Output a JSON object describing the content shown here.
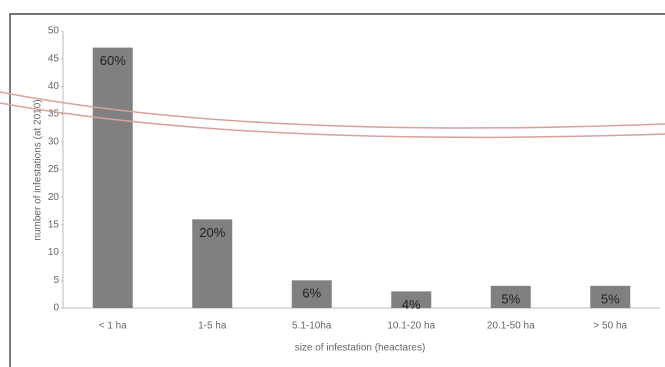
{
  "chart_data": {
    "type": "bar",
    "categories": [
      "< 1 ha",
      "1-5 ha",
      "5.1-10ha",
      "10.1-20 ha",
      "20.1-50 ha",
      "> 50 ha"
    ],
    "values": [
      47,
      16,
      5,
      3,
      4,
      4
    ],
    "percent_labels": [
      "60%",
      "20%",
      "6%",
      "4%",
      "5%",
      "5%"
    ],
    "color": "#808080",
    "ylim": [
      0,
      50
    ],
    "yticks": [
      0,
      5,
      10,
      15,
      20,
      25,
      30,
      35,
      40,
      45,
      50
    ],
    "x_label": "size of infestation (heactares)",
    "y_label": "number of infestations (at 2010)",
    "grid": false
  }
}
